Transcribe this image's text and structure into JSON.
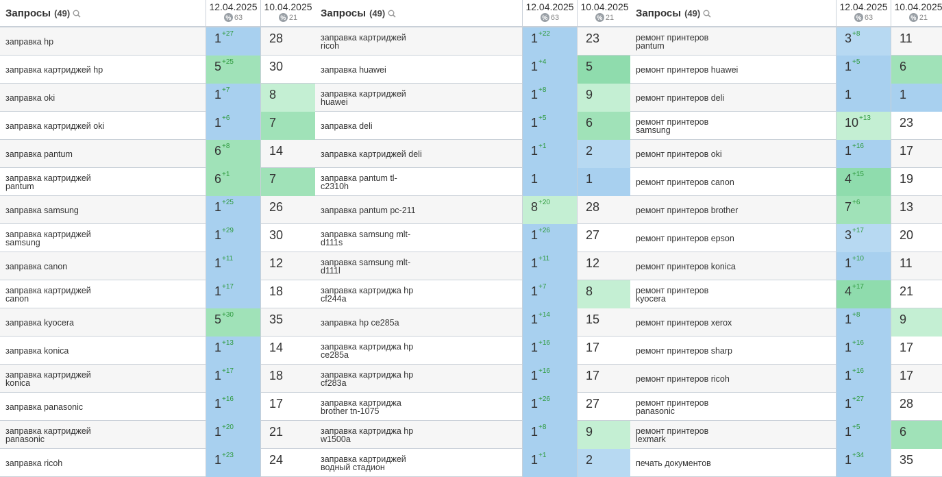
{
  "header": {
    "title": "Запросы",
    "count": "(49)",
    "date1": "12.04.2025",
    "date1_sub": "63",
    "date2": "10.04.2025",
    "date2_sub": "21",
    "pct_glyph": "%"
  },
  "groups": [
    {
      "rows": [
        {
          "q": "заправка hp",
          "v1": "1",
          "c1": "+27",
          "v2": "28",
          "cls1": "blue",
          "cls2": "white"
        },
        {
          "q": "заправка картриджей hp",
          "v1": "5",
          "c1": "+25",
          "v2": "30",
          "cls1": "green",
          "cls2": "white"
        },
        {
          "q": "заправка oki",
          "v1": "1",
          "c1": "+7",
          "v2": "8",
          "cls1": "blue",
          "cls2": "lgreen"
        },
        {
          "q": "заправка картриджей oki",
          "v1": "1",
          "c1": "+6",
          "v2": "7",
          "cls1": "blue",
          "cls2": "green"
        },
        {
          "q": "заправка pantum",
          "v1": "6",
          "c1": "+8",
          "v2": "14",
          "cls1": "green",
          "cls2": "white"
        },
        {
          "q": "заправка картриджей pantum",
          "v1": "6",
          "c1": "+1",
          "v2": "7",
          "cls1": "green",
          "cls2": "green"
        },
        {
          "q": "заправка samsung",
          "v1": "1",
          "c1": "+25",
          "v2": "26",
          "cls1": "blue",
          "cls2": "white"
        },
        {
          "q": "заправка картриджей samsung",
          "v1": "1",
          "c1": "+29",
          "v2": "30",
          "cls1": "blue",
          "cls2": "white"
        },
        {
          "q": "заправка canon",
          "v1": "1",
          "c1": "+11",
          "v2": "12",
          "cls1": "blue",
          "cls2": "white"
        },
        {
          "q": "заправка картриджей canon",
          "v1": "1",
          "c1": "+17",
          "v2": "18",
          "cls1": "blue",
          "cls2": "white"
        },
        {
          "q": "заправка kyocera",
          "v1": "5",
          "c1": "+30",
          "v2": "35",
          "cls1": "green",
          "cls2": "white"
        },
        {
          "q": "заправка konica",
          "v1": "1",
          "c1": "+13",
          "v2": "14",
          "cls1": "blue",
          "cls2": "white"
        },
        {
          "q": "заправка картриджей konica",
          "v1": "1",
          "c1": "+17",
          "v2": "18",
          "cls1": "blue",
          "cls2": "white"
        },
        {
          "q": "заправка panasonic",
          "v1": "1",
          "c1": "+16",
          "v2": "17",
          "cls1": "blue",
          "cls2": "white"
        },
        {
          "q": "заправка картриджей panasonic",
          "v1": "1",
          "c1": "+20",
          "v2": "21",
          "cls1": "blue",
          "cls2": "white"
        },
        {
          "q": "заправка ricoh",
          "v1": "1",
          "c1": "+23",
          "v2": "24",
          "cls1": "blue",
          "cls2": "white"
        }
      ]
    },
    {
      "rows": [
        {
          "q": "заправка картриджей ricoh",
          "v1": "1",
          "c1": "+22",
          "v2": "23",
          "cls1": "blue",
          "cls2": "white"
        },
        {
          "q": "заправка huawei",
          "v1": "1",
          "c1": "+4",
          "v2": "5",
          "cls1": "blue",
          "cls2": "dgreen"
        },
        {
          "q": "заправка картриджей huawei",
          "v1": "1",
          "c1": "+8",
          "v2": "9",
          "cls1": "blue",
          "cls2": "lgreen"
        },
        {
          "q": "заправка deli",
          "v1": "1",
          "c1": "+5",
          "v2": "6",
          "cls1": "blue",
          "cls2": "green"
        },
        {
          "q": "заправка картриджей deli",
          "v1": "1",
          "c1": "+1",
          "v2": "2",
          "cls1": "blue",
          "cls2": "lblue"
        },
        {
          "q": "заправка pantum tl-c2310h",
          "v1": "1",
          "c1": "",
          "v2": "1",
          "cls1": "blue",
          "cls2": "blue"
        },
        {
          "q": "заправка pantum pc-211",
          "v1": "8",
          "c1": "+20",
          "v2": "28",
          "cls1": "lgreen",
          "cls2": "white"
        },
        {
          "q": "заправка samsung mlt-d111s",
          "v1": "1",
          "c1": "+26",
          "v2": "27",
          "cls1": "blue",
          "cls2": "white"
        },
        {
          "q": "заправка samsung mlt-d111l",
          "v1": "1",
          "c1": "+11",
          "v2": "12",
          "cls1": "blue",
          "cls2": "white"
        },
        {
          "q": "заправка картриджа hp cf244a",
          "v1": "1",
          "c1": "+7",
          "v2": "8",
          "cls1": "blue",
          "cls2": "lgreen"
        },
        {
          "q": "заправка hp ce285a",
          "v1": "1",
          "c1": "+14",
          "v2": "15",
          "cls1": "blue",
          "cls2": "white"
        },
        {
          "q": "заправка картриджа hp ce285a",
          "v1": "1",
          "c1": "+16",
          "v2": "17",
          "cls1": "blue",
          "cls2": "white"
        },
        {
          "q": "заправка картриджа hp cf283a",
          "v1": "1",
          "c1": "+16",
          "v2": "17",
          "cls1": "blue",
          "cls2": "white"
        },
        {
          "q": "заправка картриджа brother tn-1075",
          "v1": "1",
          "c1": "+26",
          "v2": "27",
          "cls1": "blue",
          "cls2": "white"
        },
        {
          "q": "заправка картриджа hp w1500a",
          "v1": "1",
          "c1": "+8",
          "v2": "9",
          "cls1": "blue",
          "cls2": "lgreen"
        },
        {
          "q": "заправка картриджей водный стадион",
          "v1": "1",
          "c1": "+1",
          "v2": "2",
          "cls1": "blue",
          "cls2": "lblue"
        }
      ]
    },
    {
      "rows": [
        {
          "q": "ремонт принтеров pantum",
          "v1": "3",
          "c1": "+8",
          "v2": "11",
          "cls1": "lblue",
          "cls2": "white"
        },
        {
          "q": "ремонт принтеров huawei",
          "v1": "1",
          "c1": "+5",
          "v2": "6",
          "cls1": "blue",
          "cls2": "green"
        },
        {
          "q": "ремонт принтеров deli",
          "v1": "1",
          "c1": "",
          "v2": "1",
          "cls1": "blue",
          "cls2": "blue"
        },
        {
          "q": "ремонт принтеров samsung",
          "v1": "10",
          "c1": "+13",
          "v2": "23",
          "cls1": "lgreen",
          "cls2": "white"
        },
        {
          "q": "ремонт принтеров oki",
          "v1": "1",
          "c1": "+16",
          "v2": "17",
          "cls1": "blue",
          "cls2": "white"
        },
        {
          "q": "ремонт принтеров canon",
          "v1": "4",
          "c1": "+15",
          "v2": "19",
          "cls1": "dgreen",
          "cls2": "white"
        },
        {
          "q": "ремонт принтеров brother",
          "v1": "7",
          "c1": "+6",
          "v2": "13",
          "cls1": "green",
          "cls2": "white"
        },
        {
          "q": "ремонт принтеров epson",
          "v1": "3",
          "c1": "+17",
          "v2": "20",
          "cls1": "lblue",
          "cls2": "white"
        },
        {
          "q": "ремонт принтеров konica",
          "v1": "1",
          "c1": "+10",
          "v2": "11",
          "cls1": "blue",
          "cls2": "white"
        },
        {
          "q": "ремонт принтеров kyocera",
          "v1": "4",
          "c1": "+17",
          "v2": "21",
          "cls1": "dgreen",
          "cls2": "white"
        },
        {
          "q": "ремонт принтеров xerox",
          "v1": "1",
          "c1": "+8",
          "v2": "9",
          "cls1": "blue",
          "cls2": "lgreen"
        },
        {
          "q": "ремонт принтеров sharp",
          "v1": "1",
          "c1": "+16",
          "v2": "17",
          "cls1": "blue",
          "cls2": "white"
        },
        {
          "q": "ремонт принтеров ricoh",
          "v1": "1",
          "c1": "+16",
          "v2": "17",
          "cls1": "blue",
          "cls2": "white"
        },
        {
          "q": "ремонт принтеров panasonic",
          "v1": "1",
          "c1": "+27",
          "v2": "28",
          "cls1": "blue",
          "cls2": "white"
        },
        {
          "q": "ремонт принтеров lexmark",
          "v1": "1",
          "c1": "+5",
          "v2": "6",
          "cls1": "blue",
          "cls2": "green"
        },
        {
          "q": "печать документов",
          "v1": "1",
          "c1": "+34",
          "v2": "35",
          "cls1": "blue",
          "cls2": "white"
        }
      ]
    }
  ]
}
